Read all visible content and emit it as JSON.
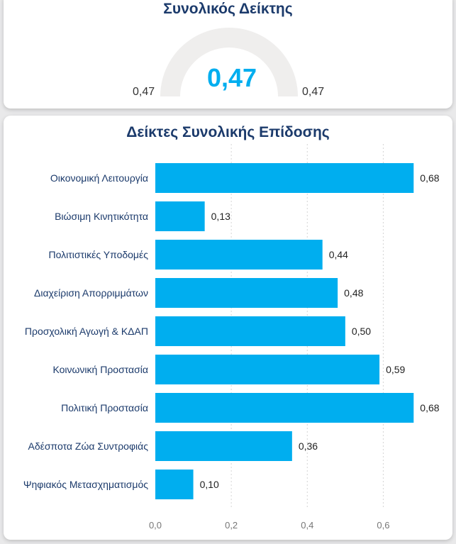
{
  "gauge": {
    "title": "Συνολικός Δείκτης",
    "value_label": "0,47",
    "min_label": "0,47",
    "max_label": "0,47",
    "value": 0.47,
    "min": 0.47,
    "max": 0.47
  },
  "colors": {
    "bar": "#00aeef",
    "title": "#1b3a6b",
    "gauge_track": "#efeeed"
  },
  "chart_data": {
    "type": "bar",
    "orientation": "horizontal",
    "title": "Δείκτες Συνολικής Επίδοσης",
    "categories": [
      "Οικονομική Λειτουργία",
      "Βιώσιμη Κινητικότητα",
      "Πολιτιστικές Υποδομές",
      "Διαχείριση Απορριμμάτων",
      "Προσχολική Αγωγή & ΚΔΑΠ",
      "Κοινωνική Προστασία",
      "Πολιτική Προστασία",
      "Αδέσποτα Ζώα Συντροφιάς",
      "Ψηφιακός Μετασχηματισμός"
    ],
    "values": [
      0.68,
      0.13,
      0.44,
      0.48,
      0.5,
      0.59,
      0.68,
      0.36,
      0.1
    ],
    "value_labels": [
      "0,68",
      "0,13",
      "0,44",
      "0,48",
      "0,50",
      "0,59",
      "0,68",
      "0,36",
      "0,10"
    ],
    "xlim": [
      0,
      0.7
    ],
    "xticks": [
      0,
      0.2,
      0.4,
      0.6
    ],
    "xtick_labels": [
      "0,0",
      "0,2",
      "0,4",
      "0,6"
    ],
    "xlabel": "",
    "ylabel": "",
    "grid": true
  }
}
